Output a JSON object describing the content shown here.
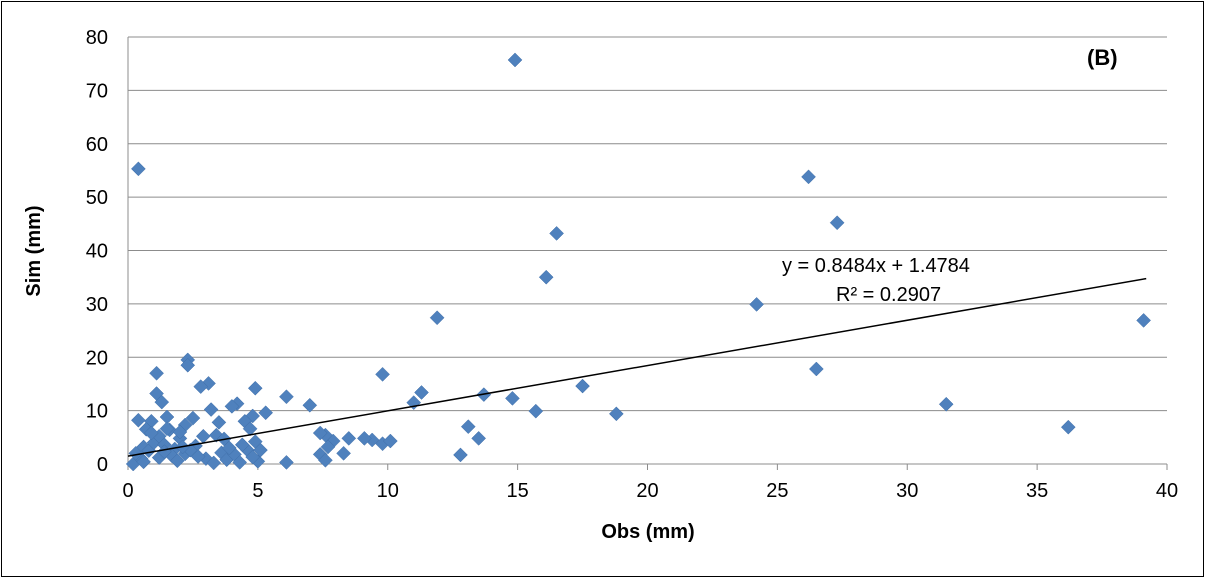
{
  "chart_data": {
    "type": "scatter",
    "panel_label": "(B)",
    "xlabel": "Obs (mm)",
    "ylabel": "Sim (mm)",
    "xlim": [
      0,
      40
    ],
    "ylim": [
      0,
      80
    ],
    "x_ticks": [
      "0",
      "5",
      "10",
      "15",
      "20",
      "25",
      "30",
      "35",
      "40"
    ],
    "y_ticks": [
      "0",
      "10",
      "20",
      "30",
      "40",
      "50",
      "60",
      "70",
      "80"
    ],
    "grid": "horizontal",
    "marker_color": "#4f81bd",
    "trendline": {
      "equation": "y = 0.8484x + 1.4784",
      "r2": "R² = 0.2907",
      "slope": 0.8484,
      "intercept": 1.4784,
      "x_range": [
        0,
        39.2
      ],
      "color": "#000000"
    },
    "points": [
      [
        0.4,
        55.3
      ],
      [
        14.9,
        75.7
      ],
      [
        26.2,
        53.8
      ],
      [
        27.3,
        45.2
      ],
      [
        16.5,
        43.2
      ],
      [
        16.1,
        35.0
      ],
      [
        24.2,
        29.9
      ],
      [
        39.1,
        26.9
      ],
      [
        11.9,
        27.4
      ],
      [
        26.5,
        17.8
      ],
      [
        17.5,
        14.6
      ],
      [
        31.5,
        11.2
      ],
      [
        36.2,
        6.9
      ],
      [
        18.8,
        9.4
      ],
      [
        15.7,
        9.9
      ],
      [
        14.8,
        12.3
      ],
      [
        13.7,
        13.0
      ],
      [
        12.8,
        1.7
      ],
      [
        13.1,
        7.0
      ],
      [
        13.5,
        4.8
      ],
      [
        11.3,
        13.4
      ],
      [
        11.0,
        11.5
      ],
      [
        9.8,
        16.8
      ],
      [
        9.8,
        3.8
      ],
      [
        10.1,
        4.3
      ],
      [
        9.4,
        4.5
      ],
      [
        9.1,
        4.8
      ],
      [
        8.5,
        4.8
      ],
      [
        8.3,
        2.0
      ],
      [
        7.9,
        4.3
      ],
      [
        7.7,
        3.2
      ],
      [
        7.6,
        5.4
      ],
      [
        7.4,
        5.8
      ],
      [
        7.4,
        1.8
      ],
      [
        7.6,
        0.7
      ],
      [
        7.0,
        11.0
      ],
      [
        6.1,
        12.6
      ],
      [
        6.1,
        0.3
      ],
      [
        5.3,
        9.6
      ],
      [
        4.9,
        14.2
      ],
      [
        4.8,
        9.0
      ],
      [
        4.5,
        8.0
      ],
      [
        4.2,
        11.3
      ],
      [
        4.0,
        10.8
      ],
      [
        3.5,
        7.8
      ],
      [
        3.2,
        10.2
      ],
      [
        3.1,
        15.1
      ],
      [
        2.8,
        14.5
      ],
      [
        2.3,
        19.5
      ],
      [
        2.3,
        18.5
      ],
      [
        2.5,
        8.6
      ],
      [
        2.2,
        7.3
      ],
      [
        1.1,
        17.0
      ],
      [
        1.1,
        13.2
      ],
      [
        1.3,
        11.6
      ],
      [
        1.5,
        8.8
      ],
      [
        0.9,
        8.0
      ],
      [
        0.4,
        8.2
      ],
      [
        0.7,
        6.5
      ],
      [
        0.2,
        0.0
      ],
      [
        0.5,
        1.0
      ],
      [
        0.3,
        2.0
      ],
      [
        0.6,
        3.2
      ],
      [
        0.8,
        2.5
      ],
      [
        1.0,
        4.0
      ],
      [
        1.2,
        5.2
      ],
      [
        1.4,
        3.6
      ],
      [
        1.6,
        6.4
      ],
      [
        1.8,
        2.8
      ],
      [
        2.0,
        4.8
      ],
      [
        1.7,
        1.5
      ],
      [
        2.2,
        1.9
      ],
      [
        2.6,
        3.4
      ],
      [
        2.9,
        5.2
      ],
      [
        3.0,
        1.0
      ],
      [
        3.3,
        0.2
      ],
      [
        3.6,
        2.1
      ],
      [
        3.8,
        0.8
      ],
      [
        4.1,
        1.8
      ],
      [
        4.3,
        0.3
      ],
      [
        4.6,
        2.6
      ],
      [
        4.9,
        4.2
      ],
      [
        5.0,
        0.5
      ],
      [
        5.1,
        2.6
      ],
      [
        4.7,
        6.6
      ],
      [
        4.4,
        3.6
      ],
      [
        3.4,
        5.4
      ],
      [
        2.0,
        6.0
      ],
      [
        1.5,
        6.6
      ],
      [
        0.9,
        5.8
      ],
      [
        1.2,
        1.2
      ],
      [
        1.9,
        0.6
      ],
      [
        2.7,
        1.4
      ],
      [
        3.9,
        3.0
      ],
      [
        0.6,
        0.4
      ],
      [
        2.4,
        2.6
      ],
      [
        3.7,
        4.7
      ],
      [
        4.8,
        1.3
      ],
      [
        1.4,
        2.3
      ],
      [
        2.1,
        3.2
      ]
    ]
  }
}
